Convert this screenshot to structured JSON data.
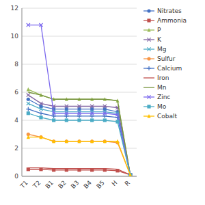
{
  "chart_data": {
    "type": "line",
    "categories": [
      "T1",
      "T2",
      "B1",
      "B2",
      "B3",
      "B4",
      "B5",
      "H",
      "R"
    ],
    "series": [
      {
        "name": "Nitrates",
        "color": "#4472C4",
        "marker": "circle",
        "values": [
          5.5,
          5.0,
          4.8,
          4.8,
          4.8,
          4.8,
          4.8,
          4.6,
          0.1
        ]
      },
      {
        "name": "Ammonia",
        "color": "#C0504D",
        "marker": "square",
        "values": [
          0.5,
          0.5,
          0.45,
          0.45,
          0.45,
          0.45,
          0.45,
          0.4,
          0.1
        ]
      },
      {
        "name": "P",
        "color": "#9BBB59",
        "marker": "triangle",
        "values": [
          6.2,
          5.8,
          5.5,
          5.5,
          5.5,
          5.5,
          5.5,
          5.4,
          0.1
        ]
      },
      {
        "name": "K",
        "color": "#8064A2",
        "marker": "x",
        "values": [
          5.8,
          5.2,
          5.0,
          5.0,
          5.0,
          5.0,
          5.0,
          4.9,
          0.1
        ]
      },
      {
        "name": "Mg",
        "color": "#4BACC6",
        "marker": "x",
        "values": [
          5.2,
          4.8,
          4.6,
          4.6,
          4.6,
          4.6,
          4.6,
          4.5,
          0.1
        ]
      },
      {
        "name": "Sulfur",
        "color": "#F79646",
        "marker": "circle",
        "values": [
          3.0,
          2.8,
          2.5,
          2.5,
          2.5,
          2.5,
          2.5,
          2.4,
          0.1
        ]
      },
      {
        "name": "Calcium",
        "color": "#4472C4",
        "marker": "plus",
        "values": [
          4.8,
          4.5,
          4.3,
          4.3,
          4.3,
          4.3,
          4.3,
          4.2,
          0.1
        ]
      },
      {
        "name": "Iron",
        "color": "#C0504D",
        "marker": "none",
        "values": [
          0.6,
          0.6,
          0.55,
          0.55,
          0.55,
          0.55,
          0.55,
          0.5,
          0.1
        ]
      },
      {
        "name": "Mn",
        "color": "#76933C",
        "marker": "none",
        "values": [
          6.0,
          5.8,
          5.5,
          5.5,
          5.5,
          5.5,
          5.5,
          5.4,
          0.1
        ]
      },
      {
        "name": "Zinc",
        "color": "#7B68EE",
        "marker": "x",
        "values": [
          10.8,
          10.8,
          4.5,
          4.5,
          4.5,
          4.5,
          4.5,
          4.4,
          0.1
        ]
      },
      {
        "name": "Mo",
        "color": "#4BACC6",
        "marker": "square",
        "values": [
          4.5,
          4.2,
          4.0,
          4.0,
          4.0,
          4.0,
          4.0,
          3.9,
          0.1
        ]
      },
      {
        "name": "Cobalt",
        "color": "#FFC000",
        "marker": "triangle",
        "values": [
          2.8,
          2.8,
          2.5,
          2.5,
          2.5,
          2.5,
          2.5,
          2.5,
          0.1
        ]
      }
    ],
    "ylim": [
      0,
      12
    ],
    "yticks": [
      0,
      2,
      4,
      6,
      8,
      10,
      12
    ],
    "grid": true,
    "legend": "right"
  }
}
